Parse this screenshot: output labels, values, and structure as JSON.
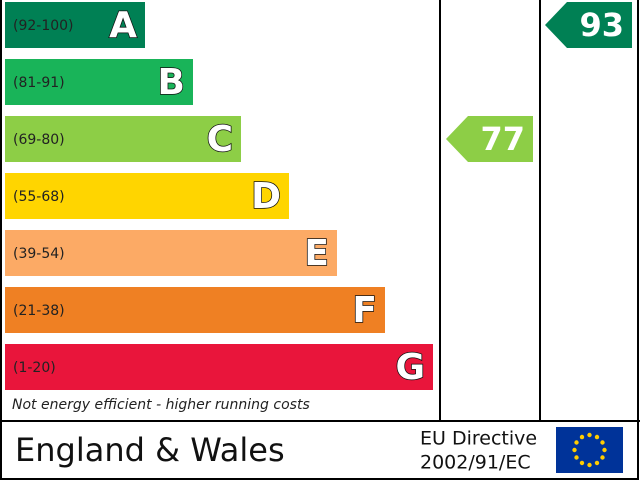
{
  "bands": [
    {
      "range": "(92-100)",
      "letter": "A",
      "color": "#008054"
    },
    {
      "range": "(81-91)",
      "letter": "B",
      "color": "#19b459"
    },
    {
      "range": "(69-80)",
      "letter": "C",
      "color": "#8dce46"
    },
    {
      "range": "(55-68)",
      "letter": "D",
      "color": "#ffd500"
    },
    {
      "range": "(39-54)",
      "letter": "E",
      "color": "#fcaa65"
    },
    {
      "range": "(21-38)",
      "letter": "F",
      "color": "#ef8023"
    },
    {
      "range": "(1-20)",
      "letter": "G",
      "color": "#e9153b"
    }
  ],
  "current": {
    "value": 77,
    "color": "#8dce46"
  },
  "potential": {
    "value": 93,
    "color": "#008054"
  },
  "footer_note": "Not energy efficient - higher running costs",
  "region": "England & Wales",
  "directive": [
    "EU Directive",
    "2002/91/EC"
  ]
}
